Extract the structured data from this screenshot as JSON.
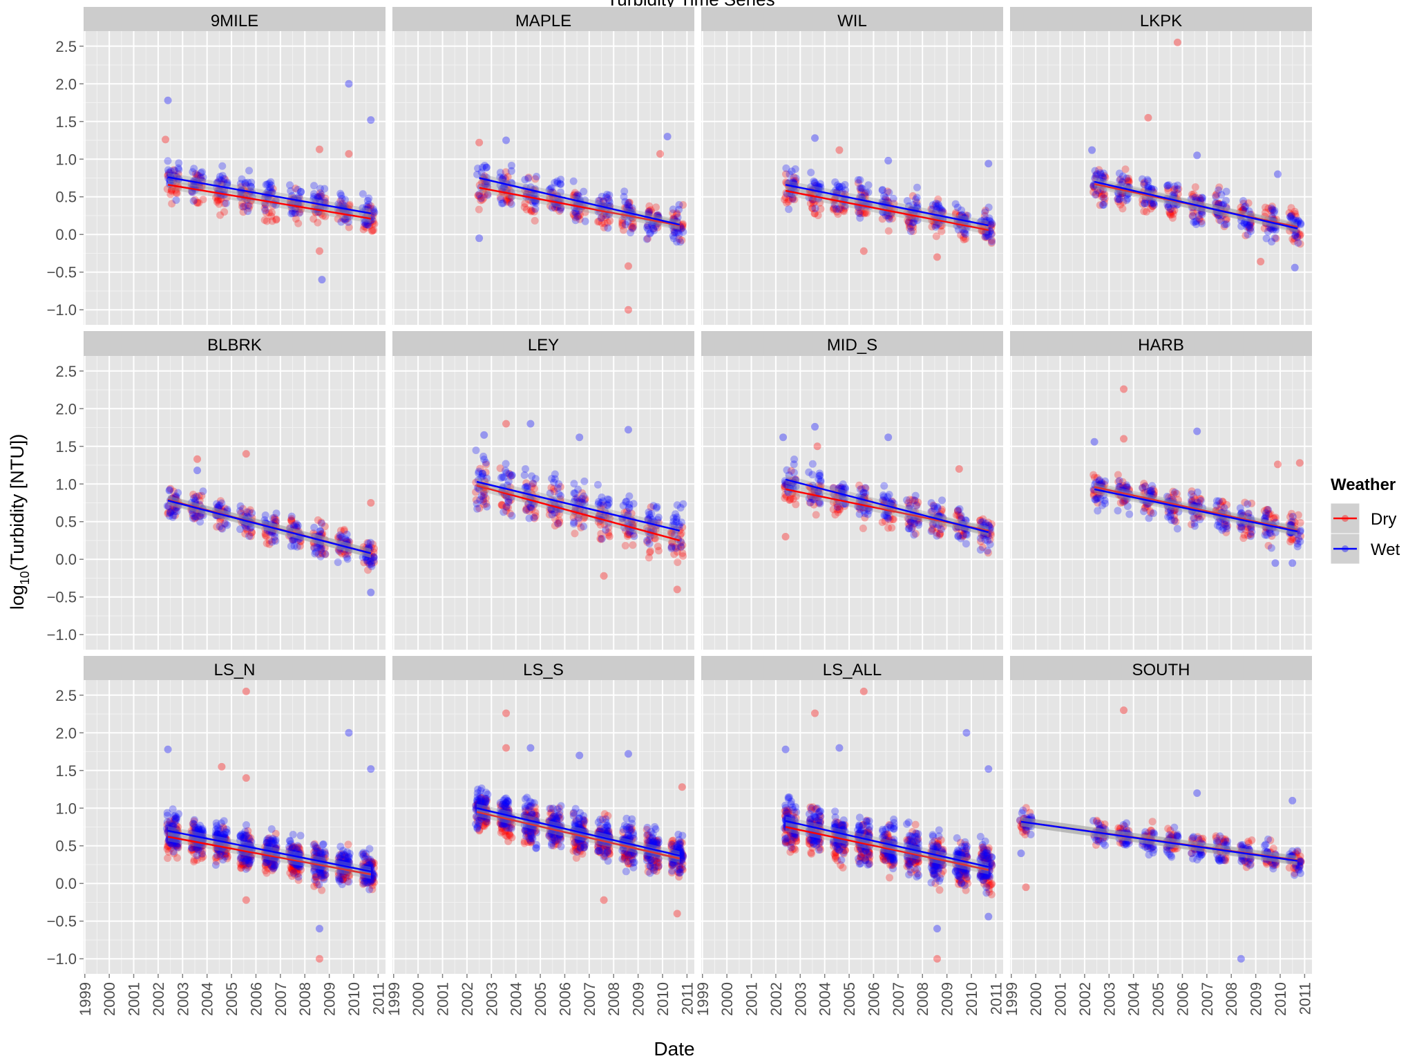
{
  "chart_data": {
    "type": "scatter",
    "title": "Turbidity Time Series",
    "xlabel": "Date",
    "ylabel_main": "log",
    "ylabel_sub": "10",
    "ylabel_rest": "(Turbidity [NTU])",
    "x_ticks": [
      "1999",
      "2000",
      "2001",
      "2002",
      "2003",
      "2004",
      "2005",
      "2006",
      "2007",
      "2008",
      "2009",
      "2010",
      "2011"
    ],
    "y_ticks": [
      "2.5",
      "2.0",
      "1.5",
      "1.0",
      "0.5",
      "0.0",
      "−0.5",
      "−1.0"
    ],
    "y_tick_values": [
      2.5,
      2.0,
      1.5,
      1.0,
      0.5,
      0.0,
      -0.5,
      -1.0
    ],
    "xlim": [
      1998.95,
      2011.3
    ],
    "ylim": [
      -1.2,
      2.7
    ],
    "grid": true,
    "legend": {
      "title": "Weather",
      "placement": "right",
      "items": [
        {
          "name": "Dry",
          "color": "#ff0000"
        },
        {
          "name": "Wet",
          "color": "#0000ff"
        }
      ]
    },
    "colors": {
      "Dry": "#ff0000",
      "Wet": "#0000ff",
      "panel_bg": "#e5e5e5",
      "strip_bg": "#cccccc",
      "band": "#999999"
    },
    "panels": [
      {
        "name": "9MILE",
        "dry": [
          2002.4,
          0.66,
          2010.7,
          0.21
        ],
        "wet": [
          2002.4,
          0.76,
          2010.7,
          0.28
        ],
        "spread": 0.19,
        "outliers": [
          [
            2002.4,
            1.78,
            "wet"
          ],
          [
            2009.8,
            2.0,
            "wet"
          ],
          [
            2010.7,
            1.52,
            "wet"
          ],
          [
            2008.7,
            -0.6,
            "wet"
          ],
          [
            2002.3,
            1.26,
            "dry"
          ],
          [
            2008.6,
            1.13,
            "dry"
          ],
          [
            2009.8,
            1.07,
            "dry"
          ],
          [
            2008.6,
            -0.22,
            "dry"
          ]
        ]
      },
      {
        "name": "MAPLE",
        "dry": [
          2002.5,
          0.62,
          2010.7,
          0.12
        ],
        "wet": [
          2002.5,
          0.75,
          2010.7,
          0.13
        ],
        "spread": 0.2,
        "outliers": [
          [
            2010.2,
            1.3,
            "wet"
          ],
          [
            2003.6,
            1.25,
            "wet"
          ],
          [
            2002.5,
            -0.05,
            "wet"
          ],
          [
            2008.6,
            -1.0,
            "dry"
          ],
          [
            2008.6,
            -0.42,
            "dry"
          ],
          [
            2009.9,
            1.07,
            "dry"
          ],
          [
            2002.5,
            1.22,
            "dry"
          ]
        ]
      },
      {
        "name": "WIL",
        "dry": [
          2002.4,
          0.58,
          2010.7,
          0.06
        ],
        "wet": [
          2002.4,
          0.66,
          2010.7,
          0.12
        ],
        "spread": 0.2,
        "outliers": [
          [
            2003.6,
            1.28,
            "wet"
          ],
          [
            2010.7,
            0.94,
            "wet"
          ],
          [
            2006.6,
            0.98,
            "wet"
          ],
          [
            2005.6,
            -0.22,
            "dry"
          ],
          [
            2004.6,
            1.12,
            "dry"
          ],
          [
            2008.6,
            -0.3,
            "dry"
          ]
        ]
      },
      {
        "name": "LKPK",
        "dry": [
          2002.4,
          0.67,
          2010.7,
          0.1
        ],
        "wet": [
          2002.4,
          0.7,
          2010.7,
          0.08
        ],
        "spread": 0.2,
        "outliers": [
          [
            2005.8,
            2.55,
            "dry"
          ],
          [
            2004.6,
            1.55,
            "dry"
          ],
          [
            2010.6,
            -0.44,
            "wet"
          ],
          [
            2002.3,
            1.12,
            "wet"
          ],
          [
            2006.6,
            1.05,
            "wet"
          ],
          [
            2009.9,
            0.8,
            "wet"
          ],
          [
            2009.2,
            -0.36,
            "dry"
          ]
        ]
      },
      {
        "name": "BLBRK",
        "dry": [
          2002.4,
          0.79,
          2010.7,
          0.08
        ],
        "wet": [
          2002.4,
          0.78,
          2010.7,
          0.08
        ],
        "spread": 0.18,
        "outliers": [
          [
            2005.6,
            1.4,
            "dry"
          ],
          [
            2003.6,
            1.33,
            "dry"
          ],
          [
            2010.7,
            0.75,
            "dry"
          ],
          [
            2010.7,
            -0.44,
            "wet"
          ],
          [
            2003.6,
            1.18,
            "wet"
          ]
        ]
      },
      {
        "name": "LEY",
        "dry": [
          2002.4,
          0.98,
          2010.7,
          0.25
        ],
        "wet": [
          2002.4,
          1.03,
          2010.7,
          0.38
        ],
        "spread": 0.27,
        "outliers": [
          [
            2003.6,
            1.8,
            "dry"
          ],
          [
            2004.6,
            1.8,
            "wet"
          ],
          [
            2008.6,
            1.72,
            "wet"
          ],
          [
            2002.7,
            1.65,
            "wet"
          ],
          [
            2006.6,
            1.62,
            "wet"
          ],
          [
            2007.6,
            -0.22,
            "dry"
          ],
          [
            2010.6,
            -0.4,
            "dry"
          ]
        ]
      },
      {
        "name": "MID_S",
        "dry": [
          2002.4,
          0.93,
          2010.7,
          0.38
        ],
        "wet": [
          2002.4,
          1.06,
          2010.7,
          0.36
        ],
        "spread": 0.2,
        "outliers": [
          [
            2003.6,
            1.76,
            "wet"
          ],
          [
            2006.6,
            1.62,
            "wet"
          ],
          [
            2002.3,
            1.62,
            "wet"
          ],
          [
            2003.7,
            1.5,
            "dry"
          ],
          [
            2002.4,
            0.3,
            "dry"
          ],
          [
            2009.5,
            1.2,
            "dry"
          ]
        ]
      },
      {
        "name": "HARB",
        "dry": [
          2002.4,
          0.96,
          2010.7,
          0.38
        ],
        "wet": [
          2002.4,
          0.93,
          2010.7,
          0.37
        ],
        "spread": 0.2,
        "outliers": [
          [
            2003.6,
            2.26,
            "dry"
          ],
          [
            2003.6,
            1.6,
            "dry"
          ],
          [
            2006.6,
            1.7,
            "wet"
          ],
          [
            2002.4,
            1.56,
            "wet"
          ],
          [
            2010.8,
            1.28,
            "dry"
          ],
          [
            2009.9,
            1.26,
            "dry"
          ],
          [
            2010.5,
            -0.05,
            "wet"
          ],
          [
            2009.8,
            -0.05,
            "wet"
          ]
        ]
      },
      {
        "name": "LS_N",
        "dry": [
          2002.4,
          0.62,
          2010.7,
          0.12
        ],
        "wet": [
          2002.4,
          0.7,
          2010.7,
          0.16
        ],
        "spread": 0.21,
        "outliers": [
          [
            2005.6,
            2.55,
            "dry"
          ],
          [
            2009.8,
            2.0,
            "wet"
          ],
          [
            2002.4,
            1.78,
            "wet"
          ],
          [
            2004.6,
            1.55,
            "dry"
          ],
          [
            2010.7,
            1.52,
            "wet"
          ],
          [
            2005.6,
            1.4,
            "dry"
          ],
          [
            2008.6,
            -1.0,
            "dry"
          ],
          [
            2008.6,
            -0.6,
            "wet"
          ],
          [
            2005.6,
            -0.22,
            "dry"
          ]
        ]
      },
      {
        "name": "LS_S",
        "dry": [
          2002.4,
          0.95,
          2010.7,
          0.33
        ],
        "wet": [
          2002.4,
          1.0,
          2010.7,
          0.37
        ],
        "spread": 0.23,
        "outliers": [
          [
            2003.6,
            2.26,
            "dry"
          ],
          [
            2004.6,
            1.8,
            "wet"
          ],
          [
            2003.6,
            1.8,
            "dry"
          ],
          [
            2008.6,
            1.72,
            "wet"
          ],
          [
            2006.6,
            1.7,
            "wet"
          ],
          [
            2010.8,
            1.28,
            "dry"
          ],
          [
            2007.6,
            -0.22,
            "dry"
          ],
          [
            2010.6,
            -0.4,
            "dry"
          ]
        ]
      },
      {
        "name": "LS_ALL",
        "dry": [
          2002.4,
          0.75,
          2010.7,
          0.18
        ],
        "wet": [
          2002.4,
          0.83,
          2010.7,
          0.22
        ],
        "spread": 0.26,
        "outliers": [
          [
            2005.6,
            2.55,
            "dry"
          ],
          [
            2003.6,
            2.26,
            "dry"
          ],
          [
            2009.8,
            2.0,
            "wet"
          ],
          [
            2004.6,
            1.8,
            "wet"
          ],
          [
            2002.4,
            1.78,
            "wet"
          ],
          [
            2008.6,
            -1.0,
            "dry"
          ],
          [
            2008.6,
            -0.6,
            "wet"
          ],
          [
            2010.7,
            -0.44,
            "wet"
          ],
          [
            2010.7,
            1.52,
            "wet"
          ]
        ]
      },
      {
        "name": "SOUTH",
        "dry": [
          1999.4,
          0.82,
          2010.7,
          0.31
        ],
        "wet": [
          1999.4,
          0.82,
          2010.7,
          0.3
        ],
        "spread": 0.15,
        "outliers": [
          [
            2003.6,
            2.3,
            "dry"
          ],
          [
            2008.4,
            -1.0,
            "wet"
          ],
          [
            1999.6,
            -0.05,
            "dry"
          ],
          [
            2006.6,
            1.2,
            "wet"
          ],
          [
            2010.5,
            1.1,
            "wet"
          ],
          [
            1999.4,
            0.4,
            "wet"
          ]
        ]
      }
    ]
  }
}
